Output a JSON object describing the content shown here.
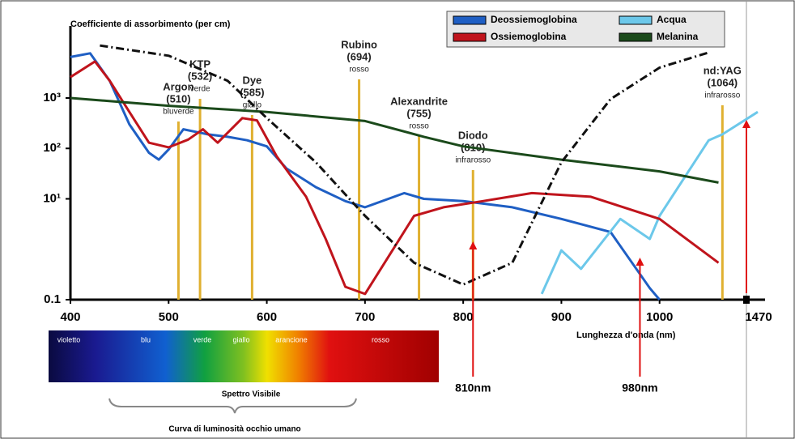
{
  "chart_data": {
    "type": "line",
    "y_label": "Coefficiente di assorbimento (per cm)",
    "x_label": "Lunghezza d'onda (nm)",
    "xlim": [
      400,
      1100
    ],
    "xticks": [
      400,
      500,
      600,
      700,
      800,
      900,
      1000
    ],
    "x_extra_tick_label": "1470",
    "ylim": [
      0.1,
      20000
    ],
    "y_log": true,
    "yticks": [
      0.1,
      {
        "value": 10,
        "label": "10¹"
      },
      {
        "value": 100,
        "label": "10²"
      },
      {
        "value": 1000,
        "label": "10³"
      }
    ],
    "legend": "top-right",
    "series": [
      {
        "name": "Deossiemoglobina",
        "color": "#1f5fc4",
        "x": [
          400,
          420,
          440,
          460,
          480,
          490,
          500,
          515,
          540,
          560,
          580,
          600,
          620,
          650,
          680,
          700,
          740,
          760,
          800,
          850,
          900,
          950,
          990,
          1000
        ],
        "values": [
          6500,
          7700,
          2200,
          300,
          82,
          60,
          95,
          240,
          190,
          170,
          145,
          110,
          40,
          17,
          9,
          6.8,
          13,
          10,
          9,
          6.8,
          4,
          2.2,
          0.17,
          0.1
        ]
      },
      {
        "name": "Acqua",
        "color": "#6cc8ea",
        "x": [
          880,
          900,
          920,
          960,
          990,
          1000,
          1050,
          1064,
          1100
        ],
        "values": [
          0.13,
          0.95,
          0.41,
          4,
          1.6,
          4.6,
          145,
          190,
          530
        ]
      },
      {
        "name": "Ossiemoglobina",
        "color": "#c0141c",
        "x": [
          400,
          425,
          440,
          460,
          480,
          500,
          520,
          535,
          550,
          575,
          590,
          610,
          640,
          660,
          680,
          700,
          720,
          750,
          780,
          820,
          870,
          930,
          1000,
          1060
        ],
        "values": [
          2600,
          5300,
          2200,
          530,
          130,
          105,
          150,
          240,
          130,
          400,
          360,
          70,
          11,
          1.6,
          0.18,
          0.13,
          0.54,
          4.6,
          6.8,
          9,
          13,
          11,
          4,
          0.54
        ]
      },
      {
        "name": "Melanina",
        "color": "#1b4a1b",
        "x": [
          400,
          500,
          600,
          700,
          760,
          800,
          900,
          1000,
          1060
        ],
        "values": [
          1000,
          700,
          530,
          350,
          170,
          110,
          60,
          35,
          21
        ]
      },
      {
        "color": "#111111",
        "style": "dashdot",
        "x": [
          430,
          500,
          560,
          600,
          650,
          700,
          750,
          800,
          850,
          900,
          950,
          1000,
          1050
        ],
        "values": [
          11000,
          6900,
          2200,
          400,
          53,
          4.6,
          0.54,
          0.2,
          0.54,
          53,
          950,
          4000,
          8000
        ]
      }
    ],
    "lasers": [
      {
        "name": "Argon",
        "label": "(510)",
        "note": "bluverde",
        "x": 510
      },
      {
        "name": "KTP",
        "label": "(532)",
        "note": "verde",
        "x": 532
      },
      {
        "name": "Dye",
        "label": "(585)",
        "note": "giallo",
        "x": 585
      },
      {
        "name": "Rubino",
        "label": "(694)",
        "note": "rosso",
        "x": 694
      },
      {
        "name": "Alexandrite",
        "label": "(755)",
        "note": "rosso",
        "x": 755
      },
      {
        "name": "Diodo",
        "label": "(810)",
        "note": "infrarosso",
        "x": 810
      },
      {
        "name": "nd:YAG",
        "label": "(1064)",
        "note": "infrarosso",
        "x": 1064
      }
    ],
    "laser_color": "#e0b030",
    "arrows": [
      {
        "x": 810,
        "label": "810nm"
      },
      {
        "x": 980,
        "label": "980nm"
      }
    ],
    "arrow_color": "#e01010"
  },
  "spectrum": {
    "bands": [
      "violetto",
      "blu",
      "verde",
      "giallo",
      "arancione",
      "rosso"
    ],
    "title": "Spettro Visibile",
    "caption": "Curva di luminosità occhio umano"
  }
}
